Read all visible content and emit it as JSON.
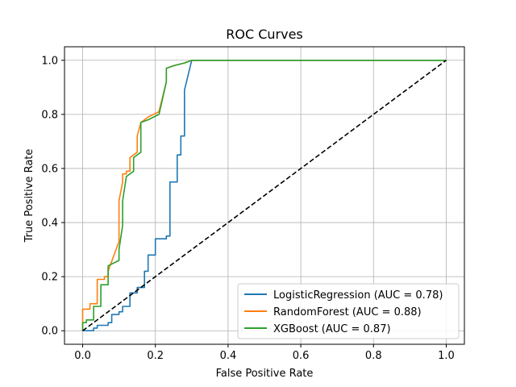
{
  "chart_data": {
    "type": "line",
    "title": "ROC Curves",
    "xlabel": "False Positive Rate",
    "ylabel": "True Positive Rate",
    "xlim": [
      -0.05,
      1.05
    ],
    "ylim": [
      -0.05,
      1.05
    ],
    "xticks": [
      0.0,
      0.2,
      0.4,
      0.6,
      0.8,
      1.0
    ],
    "yticks": [
      0.0,
      0.2,
      0.4,
      0.6,
      0.8,
      1.0
    ],
    "xtick_labels": [
      "0.0",
      "0.2",
      "0.4",
      "0.6",
      "0.8",
      "1.0"
    ],
    "ytick_labels": [
      "0.0",
      "0.2",
      "0.4",
      "0.6",
      "0.8",
      "1.0"
    ],
    "grid": true,
    "legend_position": "lower-right",
    "series": [
      {
        "name": "LogisticRegression (AUC = 0.78)",
        "color": "#1f77b4",
        "x": [
          0.0,
          0.0,
          0.03,
          0.03,
          0.04,
          0.04,
          0.07,
          0.07,
          0.08,
          0.08,
          0.1,
          0.1,
          0.11,
          0.11,
          0.13,
          0.13,
          0.15,
          0.15,
          0.17,
          0.17,
          0.18,
          0.18,
          0.2,
          0.2,
          0.23,
          0.23,
          0.24,
          0.24,
          0.26,
          0.26,
          0.27,
          0.27,
          0.28,
          0.28,
          0.3,
          1.0
        ],
        "y": [
          0.0,
          0.0,
          0.0,
          0.01,
          0.01,
          0.02,
          0.02,
          0.03,
          0.03,
          0.06,
          0.06,
          0.07,
          0.07,
          0.09,
          0.09,
          0.14,
          0.14,
          0.16,
          0.16,
          0.22,
          0.22,
          0.28,
          0.28,
          0.34,
          0.34,
          0.35,
          0.35,
          0.55,
          0.55,
          0.65,
          0.65,
          0.72,
          0.72,
          0.89,
          1.0,
          1.0
        ]
      },
      {
        "name": "RandomForest (AUC = 0.88)",
        "color": "#ff7f0e",
        "x": [
          0.0,
          0.0,
          0.02,
          0.02,
          0.04,
          0.04,
          0.06,
          0.06,
          0.07,
          0.07,
          0.1,
          0.1,
          0.11,
          0.11,
          0.12,
          0.12,
          0.13,
          0.13,
          0.15,
          0.15,
          0.16,
          0.16,
          0.18,
          0.21,
          0.23,
          0.23,
          0.25,
          0.28,
          0.3,
          1.0
        ],
        "y": [
          0.0,
          0.08,
          0.08,
          0.1,
          0.1,
          0.19,
          0.19,
          0.2,
          0.2,
          0.22,
          0.33,
          0.48,
          0.55,
          0.58,
          0.58,
          0.59,
          0.59,
          0.64,
          0.66,
          0.72,
          0.77,
          0.77,
          0.79,
          0.81,
          0.92,
          0.97,
          0.98,
          0.99,
          1.0,
          1.0
        ]
      },
      {
        "name": "XGBoost (AUC = 0.87)",
        "color": "#2ca02c",
        "x": [
          0.0,
          0.0,
          0.01,
          0.01,
          0.03,
          0.03,
          0.05,
          0.05,
          0.07,
          0.07,
          0.1,
          0.1,
          0.11,
          0.11,
          0.12,
          0.12,
          0.14,
          0.14,
          0.16,
          0.16,
          0.18,
          0.21,
          0.23,
          0.23,
          0.25,
          0.28,
          0.3,
          1.0
        ],
        "y": [
          0.0,
          0.03,
          0.03,
          0.04,
          0.04,
          0.09,
          0.09,
          0.17,
          0.17,
          0.24,
          0.26,
          0.3,
          0.39,
          0.48,
          0.57,
          0.57,
          0.59,
          0.64,
          0.66,
          0.77,
          0.78,
          0.8,
          0.92,
          0.97,
          0.98,
          0.99,
          1.0,
          1.0
        ]
      }
    ],
    "reference_line": {
      "style": "dashed",
      "color": "#000000",
      "x": [
        0,
        1
      ],
      "y": [
        0,
        1
      ]
    }
  }
}
